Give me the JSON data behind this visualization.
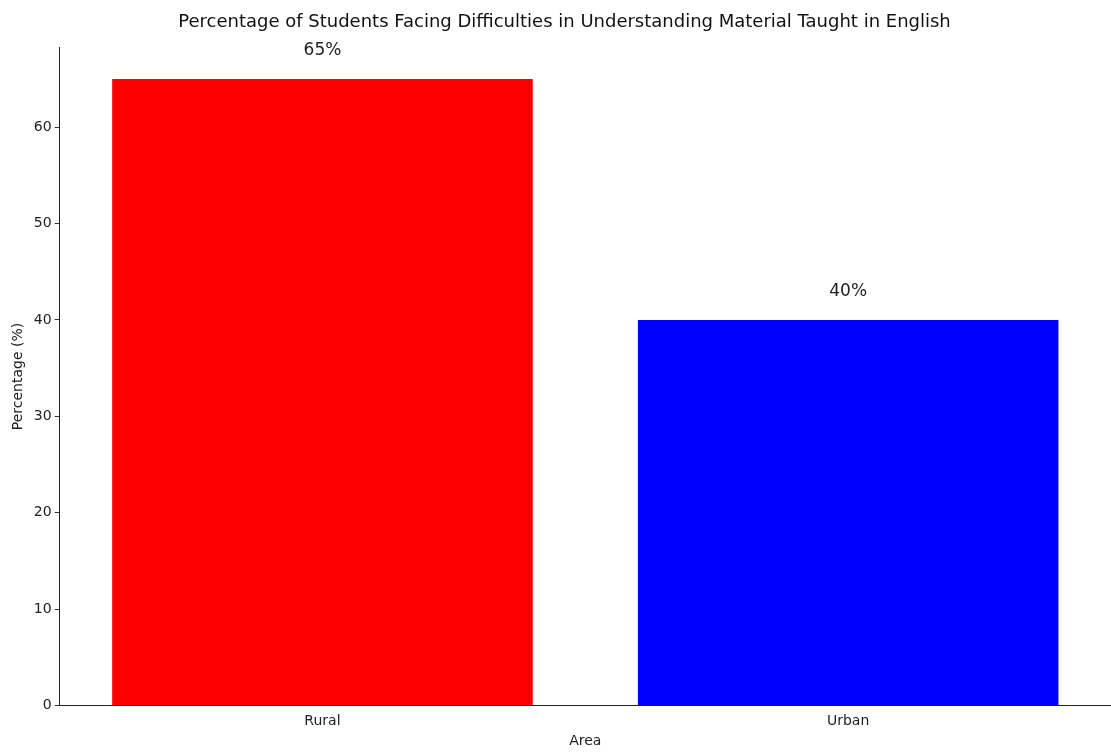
{
  "chart_data": {
    "type": "bar",
    "title": "Percentage of Students Facing Difficulties in Understanding Material Taught in English",
    "xlabel": "Area",
    "ylabel": "Percentage (%)",
    "categories": [
      "Rural",
      "Urban"
    ],
    "values": [
      65,
      40
    ],
    "colors": [
      "#ff0000",
      "#0000ff"
    ],
    "value_labels": [
      "65%",
      "40%"
    ],
    "ylim": [
      0,
      68.25
    ],
    "yticks": [
      0,
      10,
      20,
      30,
      40,
      50,
      60
    ],
    "grid": false,
    "legend": false
  }
}
